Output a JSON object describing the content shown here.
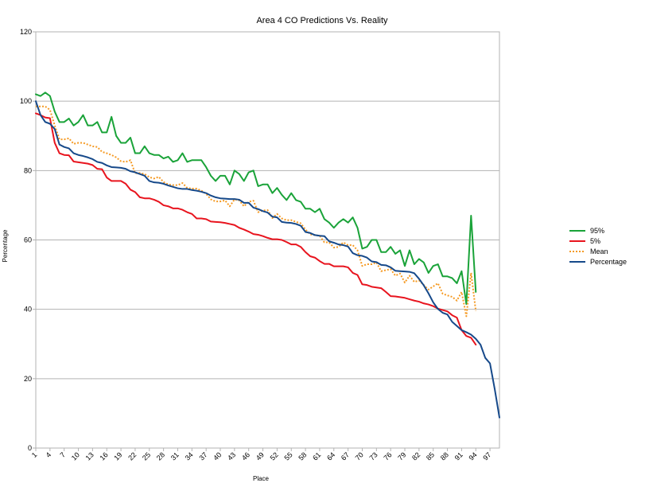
{
  "chart_data": {
    "type": "line",
    "title": "Area 4 CO Predictions Vs. Reality",
    "xlabel": "Place",
    "ylabel": "Percentage",
    "ylim": [
      0,
      120
    ],
    "yticks": [
      0,
      20,
      40,
      60,
      80,
      100,
      120
    ],
    "xlim": [
      1,
      99
    ],
    "xticks": [
      1,
      4,
      7,
      10,
      13,
      16,
      19,
      22,
      25,
      28,
      31,
      34,
      37,
      40,
      43,
      46,
      49,
      52,
      55,
      58,
      61,
      64,
      67,
      70,
      73,
      76,
      79,
      82,
      85,
      88,
      91,
      94,
      97
    ],
    "grid": "horizontal",
    "legend_position": "right",
    "series": [
      {
        "name": "95%",
        "color": "#1aa339",
        "style": "solid",
        "x": [
          1,
          2,
          3,
          4,
          5,
          6,
          7,
          8,
          9,
          10,
          11,
          12,
          13,
          14,
          15,
          16,
          17,
          18,
          19,
          20,
          21,
          22,
          23,
          24,
          25,
          26,
          27,
          28,
          29,
          30,
          31,
          32,
          33,
          34,
          35,
          36,
          37,
          38,
          39,
          40,
          41,
          42,
          43,
          44,
          45,
          46,
          47,
          48,
          49,
          50,
          51,
          52,
          53,
          54,
          55,
          56,
          57,
          58,
          59,
          60,
          61,
          62,
          63,
          64,
          65,
          66,
          67,
          68,
          69,
          70,
          71,
          72,
          73,
          74,
          75,
          76,
          77,
          78,
          79,
          80,
          81,
          82,
          83,
          84,
          85,
          86,
          87,
          88,
          89,
          90,
          91,
          92,
          93,
          94
        ],
        "values": [
          102,
          101.5,
          102.5,
          101.5,
          97,
          94,
          94,
          95,
          93,
          94,
          96,
          93,
          93,
          94,
          91,
          91,
          95.5,
          90,
          88,
          88,
          89.5,
          85,
          85,
          87,
          85,
          84.5,
          84.5,
          83.5,
          84,
          82.5,
          83,
          85,
          82.5,
          83,
          83,
          83,
          81,
          78.5,
          77,
          78.5,
          78.5,
          76,
          80,
          79,
          77,
          79.5,
          80,
          75.5,
          76,
          76,
          73.5,
          75,
          73,
          71.5,
          73.5,
          71.5,
          71,
          69,
          69,
          68,
          69,
          66,
          65,
          63.5,
          65,
          66,
          65,
          66.5,
          63.5,
          57.5,
          58,
          60,
          60,
          56.5,
          56.5,
          58,
          56,
          57,
          52.5,
          57,
          53,
          54.5,
          53.5,
          50.5,
          52.5,
          53,
          49.5,
          49.5,
          49,
          47.5,
          51,
          41.5,
          67,
          45
        ]
      },
      {
        "name": "5%",
        "color": "#e8141e",
        "style": "solid",
        "x": [
          1,
          2,
          3,
          4,
          5,
          6,
          7,
          8,
          9,
          10,
          11,
          12,
          13,
          14,
          15,
          16,
          17,
          18,
          19,
          20,
          21,
          22,
          23,
          24,
          25,
          26,
          27,
          28,
          29,
          30,
          31,
          32,
          33,
          34,
          35,
          36,
          37,
          38,
          39,
          40,
          41,
          42,
          43,
          44,
          45,
          46,
          47,
          48,
          49,
          50,
          51,
          52,
          53,
          54,
          55,
          56,
          57,
          58,
          59,
          60,
          61,
          62,
          63,
          64,
          65,
          66,
          67,
          68,
          69,
          70,
          71,
          72,
          73,
          74,
          75,
          76,
          77,
          78,
          79,
          80,
          81,
          82,
          83,
          84,
          85,
          86,
          87,
          88,
          89,
          90,
          91,
          92,
          93,
          94
        ],
        "values": [
          96.5,
          96,
          95.3,
          95.1,
          88,
          85,
          84.5,
          84.4,
          82.6,
          82.4,
          82.2,
          82,
          81.6,
          80.5,
          80.4,
          78,
          77,
          77,
          77,
          76.2,
          74.5,
          73.8,
          72.3,
          72,
          72,
          71.6,
          71,
          70,
          69.7,
          69.1,
          69.1,
          68.7,
          68,
          67.5,
          66.2,
          66.2,
          66,
          65.3,
          65.2,
          65.1,
          64.9,
          64.6,
          64.3,
          63.5,
          63,
          62.4,
          61.7,
          61.5,
          61.1,
          60.6,
          60.2,
          60.2,
          60,
          59.4,
          58.7,
          58.7,
          58,
          56.5,
          55.3,
          54.9,
          53.9,
          53.1,
          53.1,
          52.4,
          52.4,
          52.4,
          52.1,
          50.5,
          49.9,
          47.2,
          47,
          46.5,
          46.3,
          46.1,
          45,
          43.8,
          43.7,
          43.5,
          43.3,
          42.9,
          42.5,
          42.2,
          41.7,
          41.4,
          40.9,
          40.2,
          39.8,
          39.4,
          38.3,
          37.6,
          34,
          32.3,
          31.8,
          29.8
        ]
      },
      {
        "name": "Mean",
        "color": "#f59a23",
        "style": "dotted",
        "x": [
          1,
          2,
          3,
          4,
          5,
          6,
          7,
          8,
          9,
          10,
          11,
          12,
          13,
          14,
          15,
          16,
          17,
          18,
          19,
          20,
          21,
          22,
          23,
          24,
          25,
          26,
          27,
          28,
          29,
          30,
          31,
          32,
          33,
          34,
          35,
          36,
          37,
          38,
          39,
          40,
          41,
          42,
          43,
          44,
          45,
          46,
          47,
          48,
          49,
          50,
          51,
          52,
          53,
          54,
          55,
          56,
          57,
          58,
          59,
          60,
          61,
          62,
          63,
          64,
          65,
          66,
          67,
          68,
          69,
          70,
          71,
          72,
          73,
          74,
          75,
          76,
          77,
          78,
          79,
          80,
          81,
          82,
          83,
          84,
          85,
          86,
          87,
          88,
          89,
          90,
          91,
          92,
          93,
          94
        ],
        "values": [
          98.5,
          98.5,
          98.5,
          97.5,
          93,
          89,
          89,
          89.3,
          87.7,
          88,
          88,
          87.5,
          87,
          86.8,
          85.4,
          85,
          84.5,
          83.8,
          82.7,
          82.5,
          83,
          79.2,
          79.3,
          79,
          78.1,
          77.7,
          78.2,
          76.7,
          76,
          75.8,
          75.8,
          76.4,
          75,
          74.8,
          74.8,
          74.2,
          73.3,
          71.7,
          71.1,
          71.1,
          71.4,
          69.7,
          71.7,
          71.4,
          69.7,
          71,
          71.3,
          68,
          68.5,
          68.6,
          66.3,
          67.5,
          66.2,
          65.7,
          65.7,
          65.2,
          64.8,
          63,
          61.6,
          61.4,
          61.2,
          59.3,
          59.3,
          57.8,
          58,
          59.3,
          58.5,
          58.5,
          57,
          52.5,
          53,
          53,
          53.5,
          51,
          51.3,
          51.6,
          49.7,
          50.3,
          47.7,
          49.7,
          47.9,
          48.3,
          47,
          45.7,
          46.6,
          47.5,
          44.5,
          44,
          43.6,
          42.5,
          45,
          38,
          50.5,
          39.5
        ]
      },
      {
        "name": "Percentage",
        "color": "#16498a",
        "style": "solid",
        "x": [
          1,
          2,
          3,
          4,
          5,
          6,
          7,
          8,
          9,
          10,
          11,
          12,
          13,
          14,
          15,
          16,
          17,
          18,
          19,
          20,
          21,
          22,
          23,
          24,
          25,
          26,
          27,
          28,
          29,
          30,
          31,
          32,
          33,
          34,
          35,
          36,
          37,
          38,
          39,
          40,
          41,
          42,
          43,
          44,
          45,
          46,
          47,
          48,
          49,
          50,
          51,
          52,
          53,
          54,
          55,
          56,
          57,
          58,
          59,
          60,
          61,
          62,
          63,
          64,
          65,
          66,
          67,
          68,
          69,
          70,
          71,
          72,
          73,
          74,
          75,
          76,
          77,
          78,
          79,
          80,
          81,
          82,
          83,
          84,
          85,
          86,
          87,
          88,
          89,
          90,
          91,
          92,
          93,
          94,
          95,
          96,
          97,
          98,
          99
        ],
        "values": [
          100,
          96,
          94,
          93.5,
          92,
          87.5,
          86.8,
          86.4,
          85,
          84.5,
          84.2,
          83.8,
          83.3,
          82.5,
          82.2,
          81.5,
          81,
          80.9,
          80.8,
          80.5,
          79.8,
          79.5,
          79,
          78.5,
          77,
          76.6,
          76.5,
          76.2,
          75.7,
          75.3,
          74.9,
          74.7,
          74.7,
          74.4,
          74.2,
          73.9,
          73.5,
          72.8,
          72.3,
          72,
          71.9,
          71.8,
          71.8,
          71.6,
          70.7,
          70.7,
          69.3,
          68.9,
          68.3,
          67.9,
          66.7,
          66.5,
          65.2,
          65,
          64.9,
          64.6,
          64.1,
          62.3,
          62,
          61.4,
          61.2,
          61.1,
          59.6,
          59.2,
          58.7,
          58.5,
          58.1,
          56.2,
          55.6,
          55.4,
          54.9,
          53.8,
          53.6,
          52.8,
          52.7,
          52.1,
          51.1,
          51,
          50.9,
          50.8,
          50.4,
          48.8,
          46.9,
          44.6,
          42,
          40.1,
          39,
          38.5,
          36.4,
          35.2,
          34,
          33.4,
          32.7,
          31.5,
          29.8,
          26,
          24.4,
          17,
          8.8
        ]
      }
    ]
  }
}
